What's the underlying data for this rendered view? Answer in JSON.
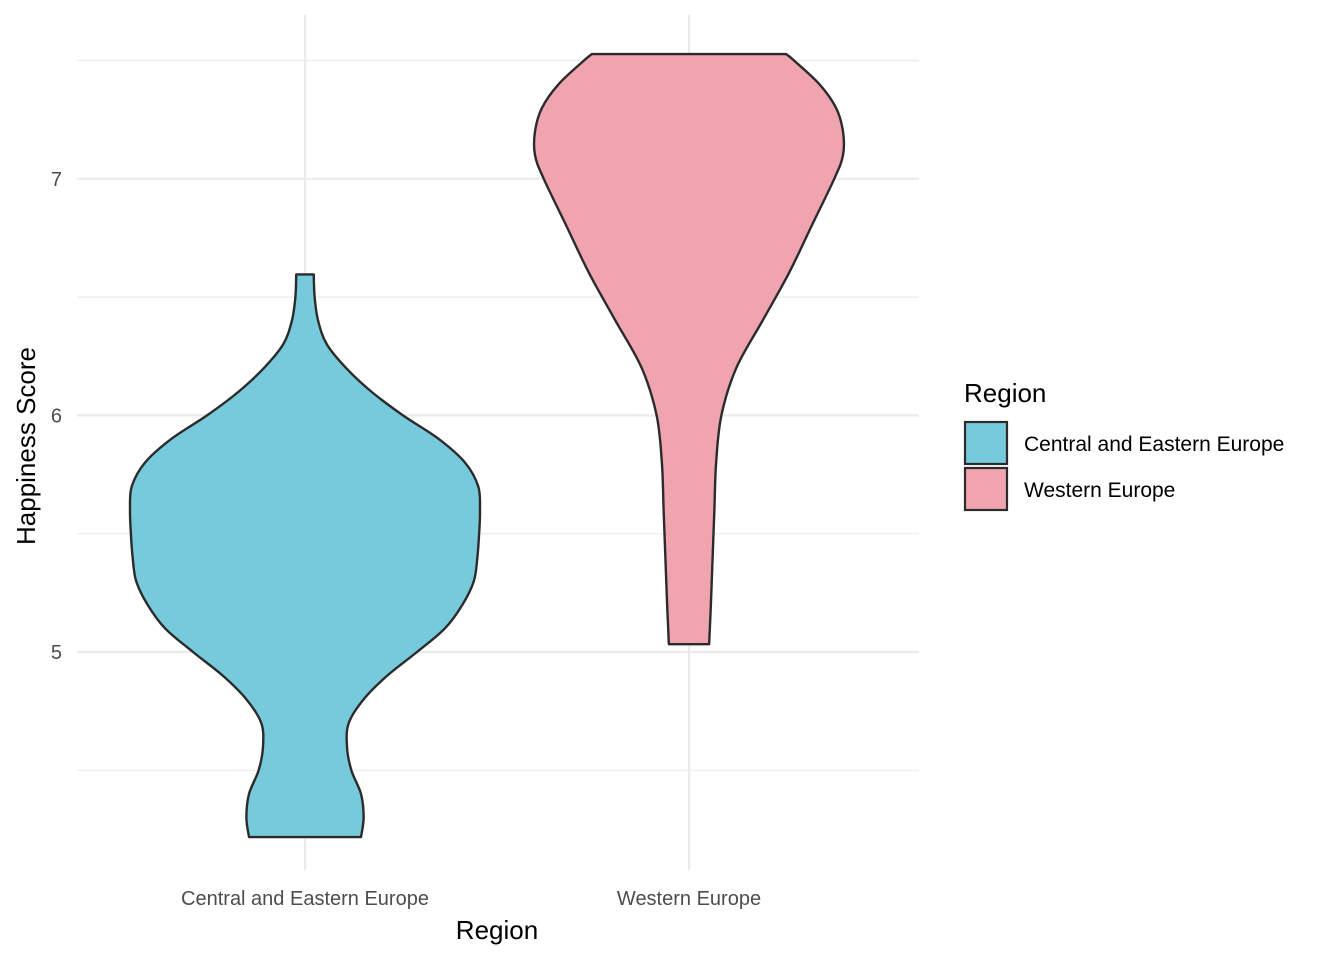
{
  "chart_data": {
    "type": "violin",
    "xlabel": "Region",
    "ylabel": "Happiness Score",
    "categories": [
      "Central and Eastern Europe",
      "Western Europe"
    ],
    "y_ticks": [
      5,
      6,
      7
    ],
    "ylim": [
      4.2,
      7.5
    ],
    "grid": true,
    "legend": {
      "title": "Region",
      "position": "right",
      "entries": [
        {
          "label": "Central and Eastern Europe",
          "color": "#76CADC"
        },
        {
          "label": "Western Europe",
          "color": "#F0A4B0"
        }
      ]
    },
    "series": [
      {
        "category": "Central and Eastern Europe",
        "color": "#76CADC",
        "min": 4.218,
        "max": 6.596,
        "density_profile": [
          [
            4.218,
            0.32
          ],
          [
            4.3,
            0.335
          ],
          [
            4.4,
            0.32
          ],
          [
            4.5,
            0.265
          ],
          [
            4.6,
            0.24
          ],
          [
            4.7,
            0.25
          ],
          [
            4.8,
            0.335
          ],
          [
            4.9,
            0.47
          ],
          [
            5.0,
            0.64
          ],
          [
            5.1,
            0.8
          ],
          [
            5.2,
            0.9
          ],
          [
            5.3,
            0.965
          ],
          [
            5.4,
            0.985
          ],
          [
            5.5,
            0.995
          ],
          [
            5.6,
            1.0
          ],
          [
            5.7,
            0.99
          ],
          [
            5.8,
            0.915
          ],
          [
            5.9,
            0.765
          ],
          [
            6.0,
            0.56
          ],
          [
            6.1,
            0.38
          ],
          [
            6.2,
            0.235
          ],
          [
            6.3,
            0.125
          ],
          [
            6.4,
            0.075
          ],
          [
            6.5,
            0.055
          ],
          [
            6.596,
            0.05
          ]
        ]
      },
      {
        "category": "Western Europe",
        "color": "#F0A4B0",
        "min": 5.033,
        "max": 7.527,
        "density_profile": [
          [
            5.033,
            0.115
          ],
          [
            5.2,
            0.125
          ],
          [
            5.4,
            0.135
          ],
          [
            5.6,
            0.145
          ],
          [
            5.8,
            0.155
          ],
          [
            6.0,
            0.185
          ],
          [
            6.2,
            0.27
          ],
          [
            6.4,
            0.42
          ],
          [
            6.6,
            0.57
          ],
          [
            6.8,
            0.7
          ],
          [
            7.0,
            0.83
          ],
          [
            7.1,
            0.88
          ],
          [
            7.2,
            0.88
          ],
          [
            7.3,
            0.84
          ],
          [
            7.4,
            0.745
          ],
          [
            7.5,
            0.6
          ],
          [
            7.527,
            0.555
          ]
        ]
      }
    ]
  }
}
